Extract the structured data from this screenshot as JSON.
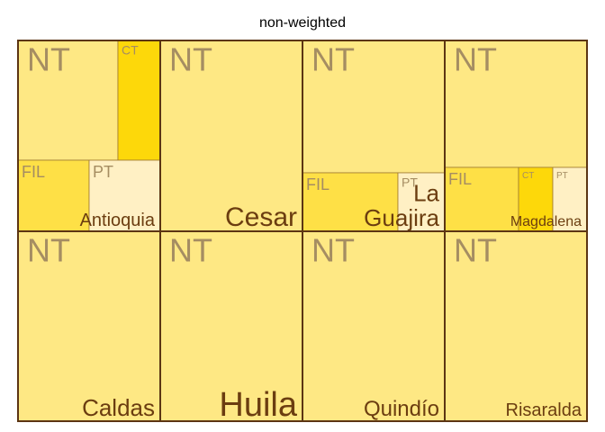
{
  "chart_data": {
    "type": "treemap",
    "title": "non-weighted",
    "weighted": false,
    "colors": {
      "NT": "#FEE884",
      "FIL": "#FEE046",
      "CT": "#FDD80A",
      "PT": "#FFF0C4",
      "group_label": "#6B3D10",
      "group_border": "#5C3513",
      "tile_border": "#A07A30",
      "subgroup_label": "#A58D62"
    },
    "groups": [
      {
        "name": "Antioquia",
        "subgroups": [
          {
            "label": "NT",
            "share": 0.625
          },
          {
            "label": "CT",
            "share": 0.125
          },
          {
            "label": "FIL",
            "share": 0.125
          },
          {
            "label": "PT",
            "share": 0.125
          }
        ]
      },
      {
        "name": "Cesar",
        "subgroups": [
          {
            "label": "NT",
            "share": 1.0
          }
        ]
      },
      {
        "name": "La Guajira",
        "subgroups": [
          {
            "label": "NT",
            "share": 0.7
          },
          {
            "label": "FIL",
            "share": 0.2
          },
          {
            "label": "PT",
            "share": 0.1
          }
        ]
      },
      {
        "name": "Magdalena",
        "subgroups": [
          {
            "label": "NT",
            "share": 0.65
          },
          {
            "label": "FIL",
            "share": 0.175
          },
          {
            "label": "CT",
            "share": 0.0875
          },
          {
            "label": "PT",
            "share": 0.0875
          }
        ]
      },
      {
        "name": "Caldas",
        "subgroups": [
          {
            "label": "NT",
            "share": 1.0
          }
        ]
      },
      {
        "name": "Huila",
        "subgroups": [
          {
            "label": "NT",
            "share": 1.0
          }
        ]
      },
      {
        "name": "Quindío",
        "subgroups": [
          {
            "label": "NT",
            "share": 1.0
          }
        ]
      },
      {
        "name": "Risaralda",
        "subgroups": [
          {
            "label": "NT",
            "share": 1.0
          }
        ]
      }
    ]
  }
}
